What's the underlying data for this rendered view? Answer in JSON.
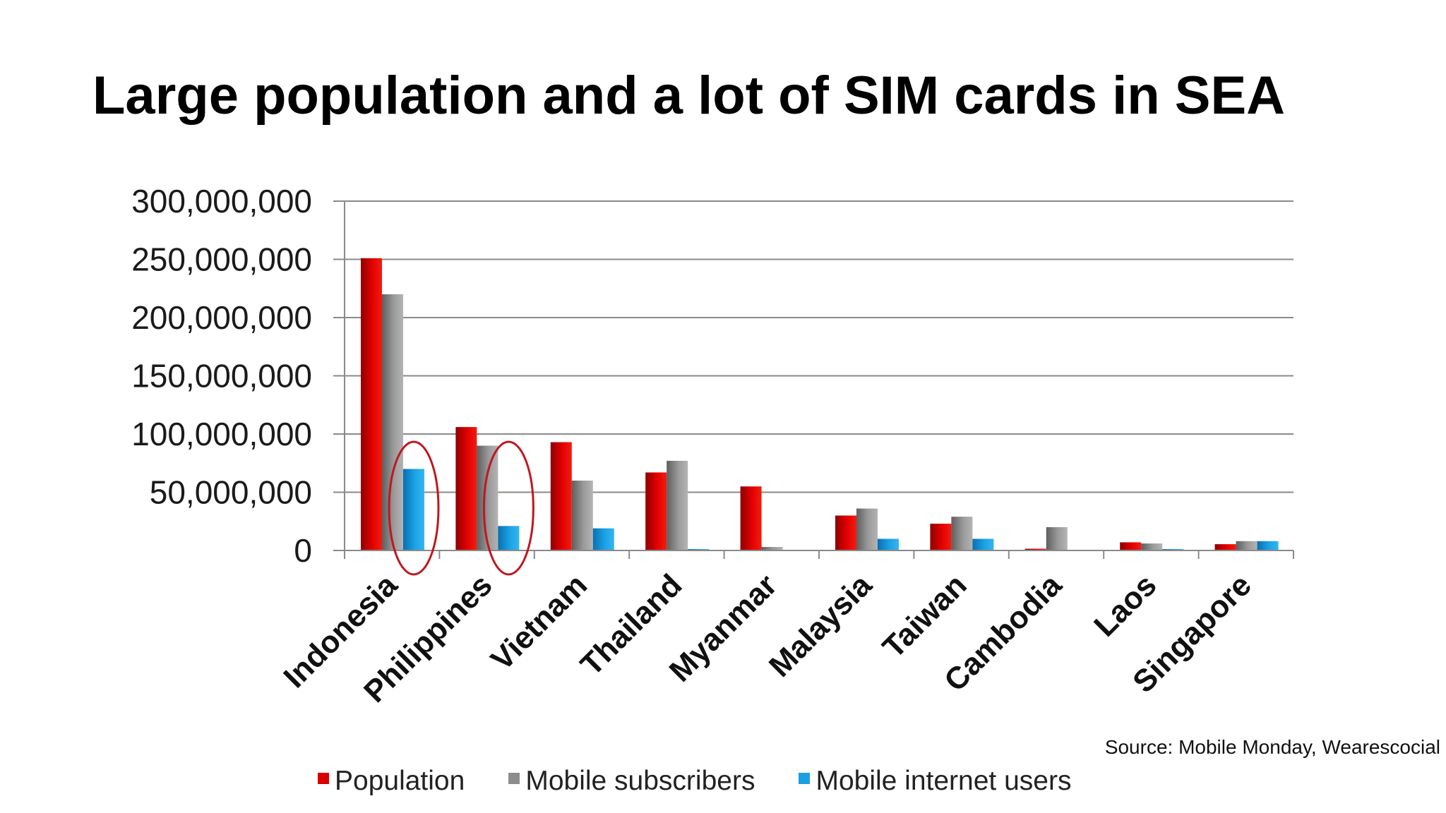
{
  "slide": {
    "title": "Large population and a lot of SIM cards in SEA",
    "source": "Source: Mobile Monday, Wearescocial"
  },
  "chart_data": {
    "type": "bar",
    "categories": [
      "Indonesia",
      "Philippines",
      "Vietnam",
      "Thailand",
      "Myanmar",
      "Malaysia",
      "Taiwan",
      "Cambodia",
      "Laos",
      "Singapore"
    ],
    "series": [
      {
        "name": "Population",
        "color": "#e30000",
        "values": [
          251000000,
          106000000,
          93000000,
          67000000,
          55000000,
          30000000,
          23000000,
          1500000,
          7000000,
          5400000
        ]
      },
      {
        "name": "Mobile subscribers",
        "color": "#8c8c8c",
        "values": [
          220000000,
          90000000,
          60000000,
          77000000,
          3000000,
          36000000,
          29000000,
          20000000,
          6000000,
          8000000
        ]
      },
      {
        "name": "Mobile internet users",
        "color": "#1a9fe0",
        "values": [
          70000000,
          21000000,
          19000000,
          1000000,
          0,
          10000000,
          10000000,
          0,
          500000,
          8000000
        ]
      }
    ],
    "yticks": [
      "300,000,000",
      "250,000,000",
      "200,000,000",
      "150,000,000",
      "100,000,000",
      "50,000,000",
      "0"
    ],
    "ylim": [
      0,
      300000000
    ],
    "grid": true,
    "legend_position": "bottom",
    "highlights": [
      "Indonesia",
      "Philippines"
    ],
    "highlight_series": "Mobile internet users",
    "highlight_color": "#c0171f"
  }
}
